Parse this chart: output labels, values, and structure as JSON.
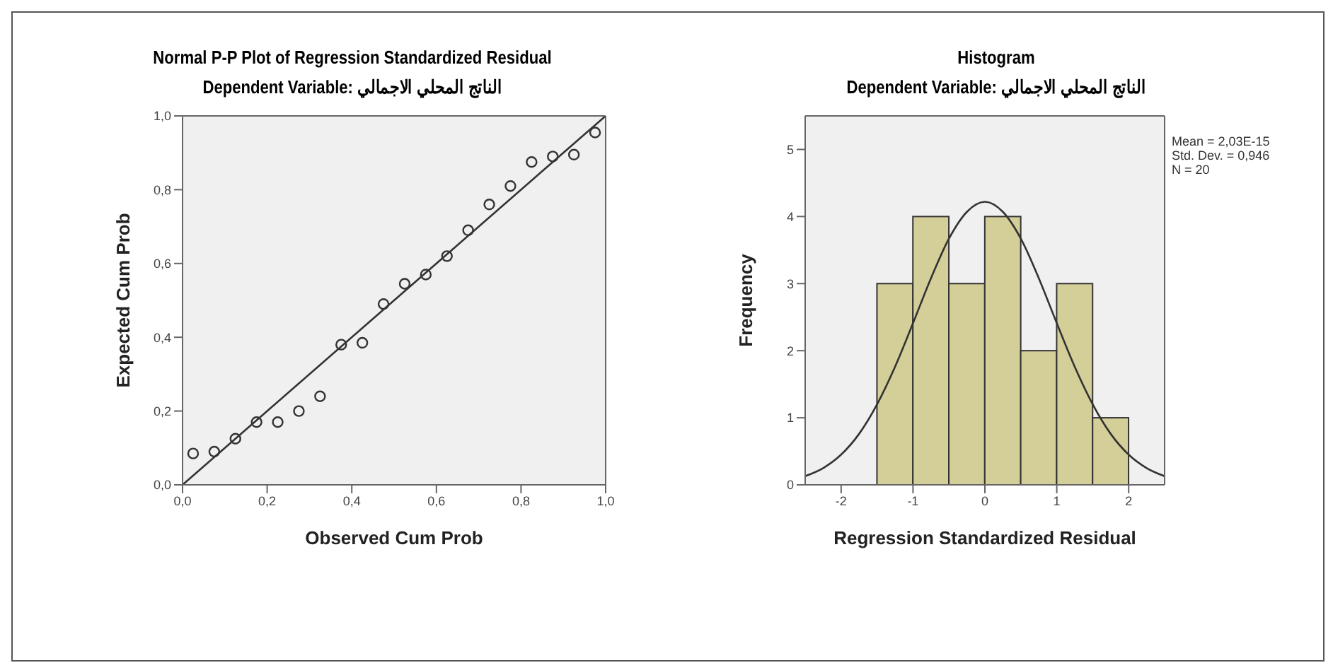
{
  "chart_data": [
    {
      "type": "scatter",
      "title": "Normal P-P Plot of Regression Standardized Residual",
      "subtitle": "Dependent Variable: الناتج المحلي الاجمالي",
      "xlabel": "Observed Cum Prob",
      "ylabel": "Expected Cum Prob",
      "xlim": [
        0,
        1
      ],
      "ylim": [
        0,
        1
      ],
      "xticks": [
        {
          "value": 0,
          "label": "0,0"
        },
        {
          "value": 0.2,
          "label": "0,2"
        },
        {
          "value": 0.4,
          "label": "0,4"
        },
        {
          "value": 0.6,
          "label": "0,6"
        },
        {
          "value": 0.8,
          "label": "0,8"
        },
        {
          "value": 1,
          "label": "1,0"
        }
      ],
      "yticks": [
        {
          "value": 0,
          "label": "0,0"
        },
        {
          "value": 0.2,
          "label": "0,2"
        },
        {
          "value": 0.4,
          "label": "0,4"
        },
        {
          "value": 0.6,
          "label": "0,6"
        },
        {
          "value": 0.8,
          "label": "0,8"
        },
        {
          "value": 1,
          "label": "1,0"
        }
      ],
      "grid": false,
      "legend": false,
      "series": [
        {
          "marker": "circle",
          "color": "#333333",
          "x": [
            0.025,
            0.075,
            0.125,
            0.175,
            0.225,
            0.275,
            0.325,
            0.375,
            0.425,
            0.475,
            0.525,
            0.575,
            0.625,
            0.675,
            0.725,
            0.775,
            0.825,
            0.875,
            0.925,
            0.975
          ],
          "values": [
            0.085,
            0.09,
            0.125,
            0.17,
            0.17,
            0.2,
            0.24,
            0.38,
            0.385,
            0.49,
            0.545,
            0.57,
            0.62,
            0.69,
            0.76,
            0.81,
            0.875,
            0.89,
            0.895,
            0.955
          ]
        },
        {
          "type": "line",
          "marker": "none",
          "color": "#333333",
          "x": [
            0,
            1
          ],
          "values": [
            0,
            1
          ]
        }
      ]
    },
    {
      "type": "histogram",
      "title": "Histogram",
      "subtitle": "Dependent Variable: الناتج المحلي الاجمالي",
      "xlabel": "Regression Standardized Residual",
      "ylabel": "Frequency",
      "xlim": [
        -2.5,
        2.5
      ],
      "ylim": [
        0,
        5.5
      ],
      "xticks": [
        -2,
        -1,
        0,
        1,
        2
      ],
      "yticks": [
        0,
        1,
        2,
        3,
        4,
        5
      ],
      "grid": false,
      "legend": false,
      "annotations": [
        "Mean = 2,03E-15",
        "Std. Dev. = 0,946",
        "N = 20"
      ],
      "series": [
        {
          "color": "#d4cf98",
          "bins": [
            -1.5,
            -1,
            -0.5,
            0,
            0.5,
            1,
            1.5,
            2
          ],
          "values": [
            3,
            4,
            3,
            4,
            2,
            3,
            1
          ]
        },
        {
          "type": "line",
          "marker": "none",
          "color": "#333333",
          "x": [
            -2.5,
            -2.25,
            -2,
            -1.75,
            -1.5,
            -1.25,
            -1,
            -0.75,
            -0.5,
            -0.25,
            0,
            0.25,
            0.5,
            0.75,
            1,
            1.25,
            1.5,
            1.75,
            2,
            2.25,
            2.5
          ],
          "values": [
            0.13,
            0.25,
            0.45,
            0.76,
            1.2,
            1.76,
            2.41,
            3.08,
            3.67,
            4.07,
            4.22,
            4.07,
            3.67,
            3.08,
            2.41,
            1.76,
            1.2,
            0.76,
            0.45,
            0.25,
            0.13
          ]
        }
      ]
    }
  ]
}
